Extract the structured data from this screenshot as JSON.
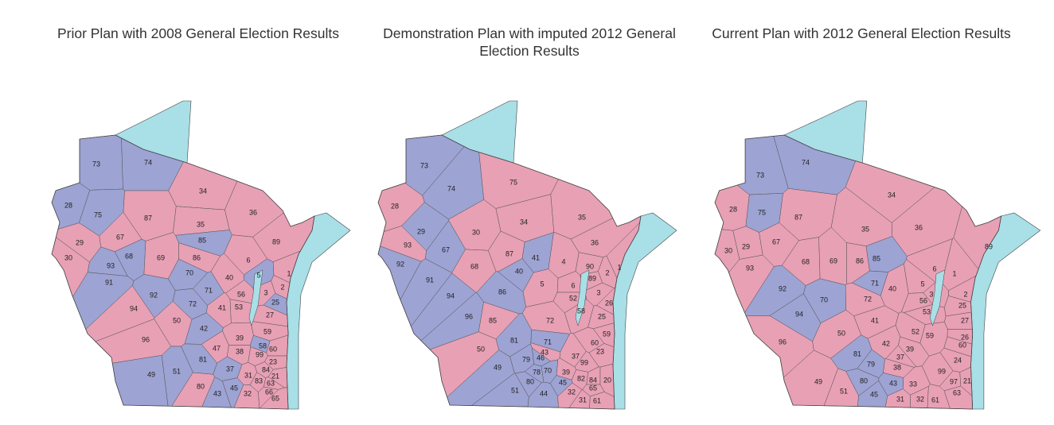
{
  "maps": [
    {
      "title": "Prior Plan with 2008 General Election Results",
      "districts": [
        {
          "label": "73",
          "color": "#9da3d3"
        },
        {
          "label": "74",
          "color": "#9da3d3"
        },
        {
          "label": "28",
          "color": "#9da3d3"
        },
        {
          "label": "75",
          "color": "#9da3d3"
        },
        {
          "label": "34",
          "color": "#e8a0b5"
        },
        {
          "label": "87",
          "color": "#e8a0b5"
        },
        {
          "label": "36",
          "color": "#e8a0b5"
        },
        {
          "label": "35",
          "color": "#e8a0b5"
        },
        {
          "label": "85",
          "color": "#9da3d3"
        },
        {
          "label": "29",
          "color": "#e8a0b5"
        },
        {
          "label": "67",
          "color": "#e8a0b5"
        },
        {
          "label": "89",
          "color": "#e8a0b5"
        },
        {
          "label": "30",
          "color": "#e8a0b5"
        },
        {
          "label": "68",
          "color": "#9da3d3"
        },
        {
          "label": "69",
          "color": "#e8a0b5"
        },
        {
          "label": "86",
          "color": "#e8a0b5"
        },
        {
          "label": "6",
          "color": "#e8a0b5"
        },
        {
          "label": "93",
          "color": "#9da3d3"
        },
        {
          "label": "70",
          "color": "#9da3d3"
        },
        {
          "label": "40",
          "color": "#e8a0b5"
        },
        {
          "label": "5",
          "color": "#9da3d3"
        },
        {
          "label": "1",
          "color": "#e8a0b5"
        },
        {
          "label": "2",
          "color": "#e8a0b5"
        },
        {
          "label": "91",
          "color": "#9da3d3"
        },
        {
          "label": "92",
          "color": "#9da3d3"
        },
        {
          "label": "71",
          "color": "#9da3d3"
        },
        {
          "label": "3",
          "color": "#e8a0b5"
        },
        {
          "label": "56",
          "color": "#e8a0b5"
        },
        {
          "label": "25",
          "color": "#9da3d3"
        },
        {
          "label": "72",
          "color": "#9da3d3"
        },
        {
          "label": "41",
          "color": "#e8a0b5"
        },
        {
          "label": "53",
          "color": "#e8a0b5"
        },
        {
          "label": "94",
          "color": "#e8a0b5"
        },
        {
          "label": "27",
          "color": "#e8a0b5"
        },
        {
          "label": "50",
          "color": "#e8a0b5"
        },
        {
          "label": "42",
          "color": "#9da3d3"
        },
        {
          "label": "59",
          "color": "#e8a0b5"
        },
        {
          "label": "96",
          "color": "#e8a0b5"
        },
        {
          "label": "39",
          "color": "#e8a0b5"
        },
        {
          "label": "47",
          "color": "#e8a0b5"
        },
        {
          "label": "38",
          "color": "#e8a0b5"
        },
        {
          "label": "58",
          "color": "#9da3d3"
        },
        {
          "label": "60",
          "color": "#e8a0b5"
        },
        {
          "label": "99",
          "color": "#e8a0b5"
        },
        {
          "label": "23",
          "color": "#e8a0b5"
        },
        {
          "label": "81",
          "color": "#9da3d3"
        },
        {
          "label": "37",
          "color": "#9da3d3"
        },
        {
          "label": "31",
          "color": "#e8a0b5"
        },
        {
          "label": "84",
          "color": "#e8a0b5"
        },
        {
          "label": "21",
          "color": "#e8a0b5"
        },
        {
          "label": "49",
          "color": "#9da3d3"
        },
        {
          "label": "51",
          "color": "#9da3d3"
        },
        {
          "label": "83",
          "color": "#e8a0b5"
        },
        {
          "label": "63",
          "color": "#e8a0b5"
        },
        {
          "label": "80",
          "color": "#e8a0b5"
        },
        {
          "label": "45",
          "color": "#9da3d3"
        },
        {
          "label": "43",
          "color": "#9da3d3"
        },
        {
          "label": "32",
          "color": "#e8a0b5"
        },
        {
          "label": "66",
          "color": "#e8a0b5"
        },
        {
          "label": "65",
          "color": "#e8a0b5"
        }
      ]
    },
    {
      "title": "Demonstration Plan with imputed 2012 General Election Results",
      "districts": [
        {
          "label": "73",
          "color": "#9da3d3"
        },
        {
          "label": "74",
          "color": "#9da3d3"
        },
        {
          "label": "75",
          "color": "#e8a0b5"
        },
        {
          "label": "28",
          "color": "#e8a0b5"
        },
        {
          "label": "34",
          "color": "#e8a0b5"
        },
        {
          "label": "35",
          "color": "#e8a0b5"
        },
        {
          "label": "29",
          "color": "#9da3d3"
        },
        {
          "label": "93",
          "color": "#e8a0b5"
        },
        {
          "label": "30",
          "color": "#e8a0b5"
        },
        {
          "label": "67",
          "color": "#9da3d3"
        },
        {
          "label": "36",
          "color": "#e8a0b5"
        },
        {
          "label": "92",
          "color": "#9da3d3"
        },
        {
          "label": "68",
          "color": "#e8a0b5"
        },
        {
          "label": "87",
          "color": "#e8a0b5"
        },
        {
          "label": "41",
          "color": "#9da3d3"
        },
        {
          "label": "4",
          "color": "#e8a0b5"
        },
        {
          "label": "90",
          "color": "#e8a0b5"
        },
        {
          "label": "1",
          "color": "#e8a0b5"
        },
        {
          "label": "2",
          "color": "#e8a0b5"
        },
        {
          "label": "89",
          "color": "#e8a0b5"
        },
        {
          "label": "91",
          "color": "#9da3d3"
        },
        {
          "label": "40",
          "color": "#9da3d3"
        },
        {
          "label": "6",
          "color": "#e8a0b5"
        },
        {
          "label": "5",
          "color": "#e8a0b5"
        },
        {
          "label": "52",
          "color": "#e8a0b5"
        },
        {
          "label": "3",
          "color": "#e8a0b5"
        },
        {
          "label": "26",
          "color": "#e8a0b5"
        },
        {
          "label": "94",
          "color": "#9da3d3"
        },
        {
          "label": "86",
          "color": "#9da3d3"
        },
        {
          "label": "58",
          "color": "#e8a0b5"
        },
        {
          "label": "96",
          "color": "#9da3d3"
        },
        {
          "label": "72",
          "color": "#e8a0b5"
        },
        {
          "label": "25",
          "color": "#e8a0b5"
        },
        {
          "label": "85",
          "color": "#e8a0b5"
        },
        {
          "label": "59",
          "color": "#e8a0b5"
        },
        {
          "label": "81",
          "color": "#9da3d3"
        },
        {
          "label": "71",
          "color": "#9da3d3"
        },
        {
          "label": "60",
          "color": "#e8a0b5"
        },
        {
          "label": "50",
          "color": "#e8a0b5"
        },
        {
          "label": "43",
          "color": "#e8a0b5"
        },
        {
          "label": "37",
          "color": "#e8a0b5"
        },
        {
          "label": "23",
          "color": "#e8a0b5"
        },
        {
          "label": "79",
          "color": "#9da3d3"
        },
        {
          "label": "46",
          "color": "#9da3d3"
        },
        {
          "label": "99",
          "color": "#e8a0b5"
        },
        {
          "label": "49",
          "color": "#9da3d3"
        },
        {
          "label": "70",
          "color": "#9da3d3"
        },
        {
          "label": "78",
          "color": "#9da3d3"
        },
        {
          "label": "39",
          "color": "#e8a0b5"
        },
        {
          "label": "80",
          "color": "#9da3d3"
        },
        {
          "label": "82",
          "color": "#e8a0b5"
        },
        {
          "label": "84",
          "color": "#e8a0b5"
        },
        {
          "label": "20",
          "color": "#e8a0b5"
        },
        {
          "label": "45",
          "color": "#9da3d3"
        },
        {
          "label": "65",
          "color": "#e8a0b5"
        },
        {
          "label": "51",
          "color": "#9da3d3"
        },
        {
          "label": "44",
          "color": "#9da3d3"
        },
        {
          "label": "32",
          "color": "#e8a0b5"
        },
        {
          "label": "31",
          "color": "#e8a0b5"
        },
        {
          "label": "61",
          "color": "#e8a0b5"
        }
      ]
    },
    {
      "title": "Current Plan with 2012 General Election Results",
      "districts": [
        {
          "label": "73",
          "color": "#9da3d3"
        },
        {
          "label": "74",
          "color": "#9da3d3"
        },
        {
          "label": "28",
          "color": "#e8a0b5"
        },
        {
          "label": "75",
          "color": "#9da3d3"
        },
        {
          "label": "87",
          "color": "#e8a0b5"
        },
        {
          "label": "34",
          "color": "#e8a0b5"
        },
        {
          "label": "35",
          "color": "#e8a0b5"
        },
        {
          "label": "36",
          "color": "#e8a0b5"
        },
        {
          "label": "89",
          "color": "#e8a0b5"
        },
        {
          "label": "29",
          "color": "#e8a0b5"
        },
        {
          "label": "67",
          "color": "#e8a0b5"
        },
        {
          "label": "30",
          "color": "#e8a0b5"
        },
        {
          "label": "93",
          "color": "#e8a0b5"
        },
        {
          "label": "68",
          "color": "#e8a0b5"
        },
        {
          "label": "69",
          "color": "#e8a0b5"
        },
        {
          "label": "86",
          "color": "#e8a0b5"
        },
        {
          "label": "85",
          "color": "#9da3d3"
        },
        {
          "label": "6",
          "color": "#e8a0b5"
        },
        {
          "label": "1",
          "color": "#e8a0b5"
        },
        {
          "label": "71",
          "color": "#9da3d3"
        },
        {
          "label": "40",
          "color": "#e8a0b5"
        },
        {
          "label": "5",
          "color": "#e8a0b5"
        },
        {
          "label": "92",
          "color": "#9da3d3"
        },
        {
          "label": "70",
          "color": "#9da3d3"
        },
        {
          "label": "72",
          "color": "#e8a0b5"
        },
        {
          "label": "56",
          "color": "#e8a0b5"
        },
        {
          "label": "3",
          "color": "#e8a0b5"
        },
        {
          "label": "2",
          "color": "#e8a0b5"
        },
        {
          "label": "25",
          "color": "#e8a0b5"
        },
        {
          "label": "53",
          "color": "#e8a0b5"
        },
        {
          "label": "94",
          "color": "#9da3d3"
        },
        {
          "label": "41",
          "color": "#e8a0b5"
        },
        {
          "label": "27",
          "color": "#e8a0b5"
        },
        {
          "label": "50",
          "color": "#e8a0b5"
        },
        {
          "label": "52",
          "color": "#e8a0b5"
        },
        {
          "label": "59",
          "color": "#e8a0b5"
        },
        {
          "label": "26",
          "color": "#e8a0b5"
        },
        {
          "label": "96",
          "color": "#e8a0b5"
        },
        {
          "label": "42",
          "color": "#e8a0b5"
        },
        {
          "label": "39",
          "color": "#e8a0b5"
        },
        {
          "label": "60",
          "color": "#e8a0b5"
        },
        {
          "label": "81",
          "color": "#9da3d3"
        },
        {
          "label": "37",
          "color": "#e8a0b5"
        },
        {
          "label": "24",
          "color": "#e8a0b5"
        },
        {
          "label": "79",
          "color": "#9da3d3"
        },
        {
          "label": "38",
          "color": "#e8a0b5"
        },
        {
          "label": "99",
          "color": "#e8a0b5"
        },
        {
          "label": "80",
          "color": "#9da3d3"
        },
        {
          "label": "43",
          "color": "#9da3d3"
        },
        {
          "label": "33",
          "color": "#e8a0b5"
        },
        {
          "label": "97",
          "color": "#e8a0b5"
        },
        {
          "label": "21",
          "color": "#e8a0b5"
        },
        {
          "label": "49",
          "color": "#e8a0b5"
        },
        {
          "label": "51",
          "color": "#e8a0b5"
        },
        {
          "label": "45",
          "color": "#9da3d3"
        },
        {
          "label": "31",
          "color": "#e8a0b5"
        },
        {
          "label": "32",
          "color": "#e8a0b5"
        },
        {
          "label": "63",
          "color": "#e8a0b5"
        },
        {
          "label": "61",
          "color": "#e8a0b5"
        }
      ]
    }
  ]
}
